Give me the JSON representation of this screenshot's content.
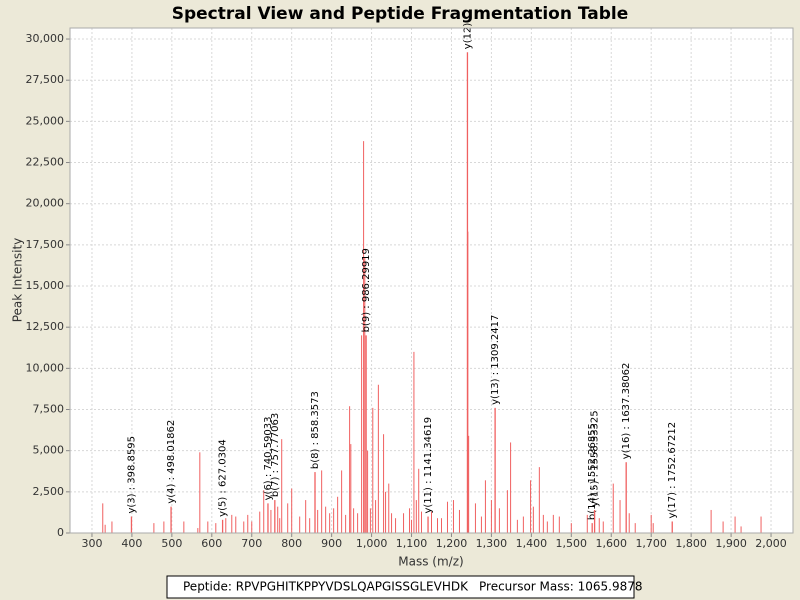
{
  "chart_data": {
    "type": "spectrum",
    "title": "Spectral View and Peptide Fragmentation Table",
    "x_label": "Mass (m/z)",
    "y_label": "Peak Intensity",
    "color": "#f06060",
    "grid": true,
    "xlim": [
      245,
      2055
    ],
    "ylim": [
      0,
      30670
    ],
    "xticks": [
      300,
      400,
      500,
      600,
      700,
      800,
      900,
      {
        "value": 1000,
        "label": "1,000"
      },
      {
        "value": 1100,
        "label": "1,100"
      },
      {
        "value": 1200,
        "label": "1,200"
      },
      {
        "value": 1300,
        "label": "1,300"
      },
      {
        "value": 1400,
        "label": "1,400"
      },
      {
        "value": 1500,
        "label": "1,500"
      },
      {
        "value": 1600,
        "label": "1,600"
      },
      {
        "value": 1700,
        "label": "1,700"
      },
      {
        "value": 1800,
        "label": "1,800"
      },
      {
        "value": 1900,
        "label": "1,900"
      },
      {
        "value": 2000,
        "label": "2,000"
      }
    ],
    "yticks": [
      0,
      {
        "value": 2500,
        "label": "2,500"
      },
      {
        "value": 5000,
        "label": "5,000"
      },
      {
        "value": 7500,
        "label": "7,500"
      },
      {
        "value": 10000,
        "label": "10,000"
      },
      {
        "value": 12500,
        "label": "12,500"
      },
      {
        "value": 15000,
        "label": "15,000"
      },
      {
        "value": 17500,
        "label": "17,500"
      },
      {
        "value": 20000,
        "label": "20,000"
      },
      {
        "value": 22500,
        "label": "22,500"
      },
      {
        "value": 25000,
        "label": "25,000"
      },
      {
        "value": 27500,
        "label": "27,500"
      },
      {
        "value": 30000,
        "label": "30,000"
      }
    ],
    "x": [
      327,
      333,
      350,
      455,
      480,
      530,
      565,
      570,
      590,
      610,
      635,
      650,
      660,
      680,
      690,
      700,
      720,
      730,
      748,
      765,
      770,
      775,
      790,
      800,
      820,
      835,
      845,
      865,
      875,
      885,
      895,
      905,
      915,
      925,
      935,
      945,
      948,
      955,
      965,
      975,
      980,
      983,
      990,
      997,
      1003,
      1010,
      1017,
      1030,
      1035,
      1043,
      1050,
      1060,
      1080,
      1095,
      1100,
      1106,
      1112,
      1118,
      1125,
      1150,
      1165,
      1175,
      1190,
      1205,
      1220,
      1241,
      1243,
      1260,
      1275,
      1285,
      1300,
      1320,
      1340,
      1348,
      1365,
      1380,
      1398,
      1405,
      1420,
      1430,
      1440,
      1455,
      1470,
      1500,
      1540,
      1570,
      1580,
      1605,
      1622,
      1645,
      1660,
      1700,
      1705,
      1850,
      1880,
      1910,
      1925,
      1975
    ],
    "values": [
      1800,
      500,
      700,
      600,
      700,
      700,
      300,
      4900,
      700,
      600,
      900,
      1100,
      1000,
      700,
      1100,
      700,
      1300,
      2600,
      1400,
      1600,
      900,
      5700,
      1800,
      2700,
      1000,
      2000,
      900,
      1400,
      3800,
      1600,
      1200,
      1500,
      2200,
      3800,
      1100,
      7700,
      5400,
      1500,
      1200,
      12000,
      23800,
      16700,
      5000,
      1500,
      7600,
      2000,
      9000,
      6000,
      2500,
      3000,
      1200,
      900,
      1200,
      1500,
      800,
      11000,
      2000,
      3900,
      1300,
      1300,
      900,
      900,
      1900,
      2000,
      1400,
      18300,
      5900,
      1800,
      1000,
      3200,
      2000,
      1500,
      2600,
      5500,
      800,
      1000,
      3200,
      1600,
      4000,
      1100,
      700,
      1100,
      1000,
      600,
      1100,
      900,
      700,
      3000,
      2000,
      1200,
      600,
      1100,
      600,
      1400,
      700,
      1000,
      400,
      1000
    ],
    "annotations": [
      {
        "text": "y(3) : 398.8595",
        "x": 398.8595,
        "y": 1000
      },
      {
        "text": "y(4) : 498.01862",
        "x": 498.01862,
        "y": 1600
      },
      {
        "text": "y(5) : 627.0304",
        "x": 627.0304,
        "y": 800
      },
      {
        "text": "y(6) : 740.59033",
        "x": 740.59033,
        "y": 1800
      },
      {
        "text": "b(7) : 757.77063",
        "x": 757.77063,
        "y": 2000
      },
      {
        "text": "b(8) : 858.3573",
        "x": 858.3573,
        "y": 3700
      },
      {
        "text": "b(9) : 986.29919",
        "x": 986.29919,
        "y": 12000
      },
      {
        "text": "y(11) : 1141.34619",
        "x": 1141.34619,
        "y": 1000
      },
      {
        "text": "y(12)",
        "x": 1240,
        "y": 29200
      },
      {
        "text": "y(13) : 1309.2417",
        "x": 1309.2417,
        "y": 7600
      },
      {
        "text": "b(14) : 1552.26855",
        "x": 1552.26855,
        "y": 600
      },
      {
        "text": "y(15) : 1558.33325",
        "x": 1558.33325,
        "y": 1400
      },
      {
        "text": "y(16) : 1637.38062",
        "x": 1637.38062,
        "y": 4300
      },
      {
        "text": "y(17) : 1752.67212",
        "x": 1752.67212,
        "y": 700
      }
    ],
    "footer": [
      "Peptide: RPVPGHITKPPYVDSLQAPGISSGLEVHDK",
      "Precursor Mass: 1065.9878"
    ]
  }
}
